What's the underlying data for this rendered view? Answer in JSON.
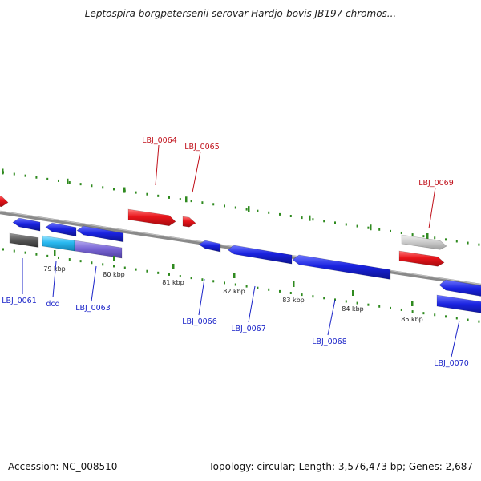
{
  "title": "Leptospira borgpetersenii serovar Hardjo-bovis JB197 chromos...",
  "footer": {
    "accession": "Accession: NC_008510",
    "topology": "Topology: circular; Length: 3,576,473 bp; Genes: 2,687"
  },
  "colors": {
    "forward_gene": "#e8151b",
    "reverse_gene": "#1a23e0",
    "forward_label": "#c0101a",
    "reverse_label": "#1a23c8",
    "tick": "#2f8a1f",
    "backbone": "#8a8a8a"
  },
  "ticks": [
    {
      "label": "79 kbp"
    },
    {
      "label": "80 kbp"
    },
    {
      "label": "81 kbp"
    },
    {
      "label": "82 kbp"
    },
    {
      "label": "83 kbp"
    },
    {
      "label": "84 kbp"
    },
    {
      "label": "85 kbp"
    }
  ],
  "genes": [
    {
      "id": "LBJ_0061",
      "strand": "reverse",
      "label_color": "reverse"
    },
    {
      "id": "dcd",
      "strand": "reverse",
      "label_color": "reverse"
    },
    {
      "id": "LBJ_0063",
      "strand": "reverse",
      "label_color": "reverse"
    },
    {
      "id": "LBJ_0064",
      "strand": "forward",
      "label_color": "forward"
    },
    {
      "id": "LBJ_0065",
      "strand": "forward",
      "label_color": "forward"
    },
    {
      "id": "LBJ_0066",
      "strand": "reverse",
      "label_color": "reverse"
    },
    {
      "id": "LBJ_0067",
      "strand": "reverse",
      "label_color": "reverse"
    },
    {
      "id": "LBJ_0068",
      "strand": "reverse",
      "label_color": "reverse"
    },
    {
      "id": "LBJ_0069",
      "strand": "forward",
      "label_color": "forward"
    },
    {
      "id": "LBJ_0070",
      "strand": "reverse",
      "label_color": "reverse"
    }
  ]
}
